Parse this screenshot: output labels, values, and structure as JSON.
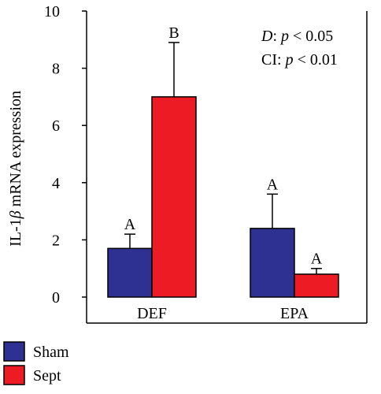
{
  "chart_data": {
    "type": "bar",
    "categories": [
      "DEF",
      "EPA"
    ],
    "series": [
      {
        "name": "Sham",
        "values": [
          1.7,
          2.4
        ],
        "errors": [
          0.5,
          1.2
        ],
        "letters": [
          "A",
          "A"
        ],
        "color": "#2e3192"
      },
      {
        "name": "Sept",
        "values": [
          7.0,
          0.8
        ],
        "errors": [
          1.9,
          0.2
        ],
        "letters": [
          "B",
          "A"
        ],
        "color": "#ed1c24"
      }
    ],
    "ylabel_pre": "IL-1",
    "ylabel_greek": "β",
    "ylabel_post": " mRNA expression",
    "ylim": [
      0,
      10
    ],
    "yticks": [
      "0",
      "2",
      "4",
      "6",
      "8",
      "10"
    ],
    "annotation": {
      "line1_var": "D",
      "line1_rest": ": ",
      "line1_p": "p",
      "line1_val": " < 0.05",
      "line2_var": "CI",
      "line2_rest": ": ",
      "line2_p": "p",
      "line2_val": " < 0.01"
    },
    "legend_position": "bottom-left"
  }
}
